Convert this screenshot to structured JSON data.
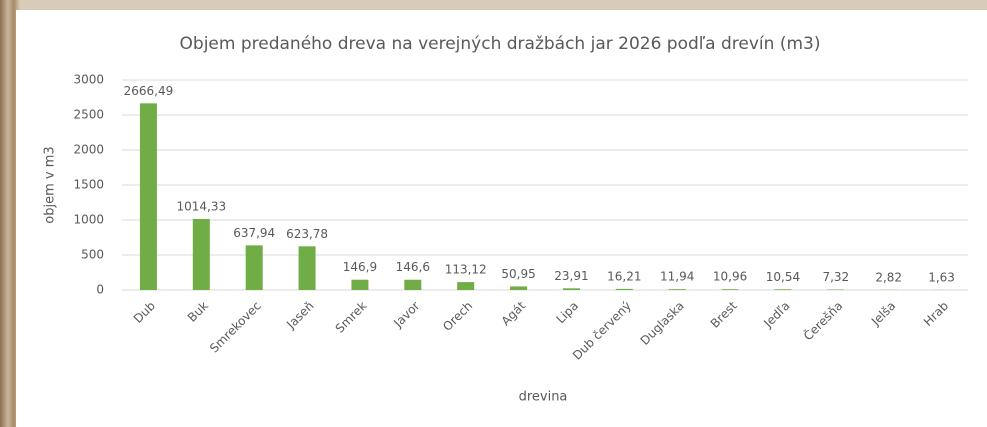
{
  "chart_data": {
    "type": "bar",
    "title": "Objem predaného dreva na verejných dražbách jar 2026 podľa drevín (m3)",
    "x_label": "drevina",
    "y_label": "objem v m3",
    "categories": [
      "Dub",
      "Buk",
      "Smrekovec",
      "Jaseň",
      "Smrek",
      "Javor",
      "Orech",
      "Agát",
      "Lipa",
      "Dub červený",
      "Duglaska",
      "Brest",
      "Jedľa",
      "Čerešňa",
      "Jelša",
      "Hrab"
    ],
    "values": [
      2666.49,
      1014.33,
      637.94,
      623.78,
      146.9,
      146.6,
      113.12,
      50.95,
      23.91,
      16.21,
      11.94,
      10.96,
      10.54,
      7.32,
      2.82,
      1.63
    ],
    "value_labels": [
      "2666,49",
      "1014,33",
      "637,94",
      "623,78",
      "146,9",
      "146,6",
      "113,12",
      "50,95",
      "23,91",
      "16,21",
      "11,94",
      "10,96",
      "10,54",
      "7,32",
      "2,82",
      "1,63"
    ],
    "color": "#70ad47",
    "ylim": [
      0,
      3000
    ],
    "yticks": [
      0,
      500,
      1000,
      1500,
      2000,
      2500,
      3000
    ],
    "grid": true
  }
}
